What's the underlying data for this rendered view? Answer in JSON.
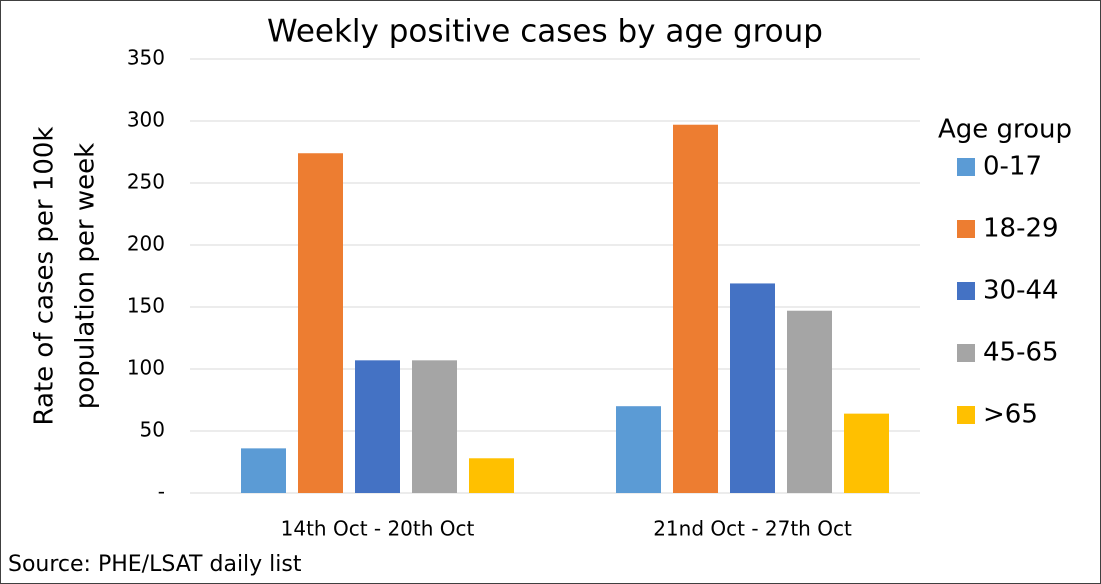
{
  "chart_data": {
    "type": "bar",
    "title": "Weekly positive cases by age group",
    "y_label": [
      "Rate of cases per 100k",
      "population per week"
    ],
    "categories": [
      "14th Oct - 20th Oct",
      "21nd Oct - 27th Oct"
    ],
    "series": [
      {
        "name": "0-17",
        "color": "#5b9bd5",
        "values": [
          36,
          70
        ]
      },
      {
        "name": "18-29",
        "color": "#ed7d31",
        "values": [
          274,
          297
        ]
      },
      {
        "name": "30-44",
        "color": "#4472c4",
        "values": [
          107,
          169
        ]
      },
      {
        "name": "45-65",
        "color": "#a5a5a5",
        "values": [
          107,
          147
        ]
      },
      {
        "name": ">65",
        "color": "#ffc000",
        "values": [
          28,
          64
        ]
      }
    ],
    "legend_title": "Age group",
    "legend": "right",
    "source": "Source: PHE/LSAT daily list",
    "ylim": [
      0,
      350
    ],
    "yticks": [
      {
        "value": 0,
        "label": "-"
      },
      50,
      100,
      150,
      200,
      250,
      300,
      350
    ],
    "grid": true
  }
}
